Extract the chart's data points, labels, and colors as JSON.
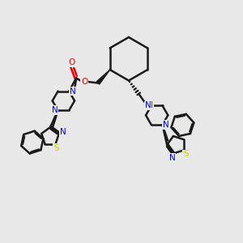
{
  "bg_color": "#e8e8e8",
  "bond_color": "#1a1a1a",
  "N_color": "#0000ee",
  "O_color": "#ee0000",
  "S_color": "#cccc00",
  "line_width": 1.8,
  "figsize": [
    3.0,
    3.0
  ],
  "dpi": 100,
  "xlim": [
    0,
    10
  ],
  "ylim": [
    0,
    10
  ]
}
